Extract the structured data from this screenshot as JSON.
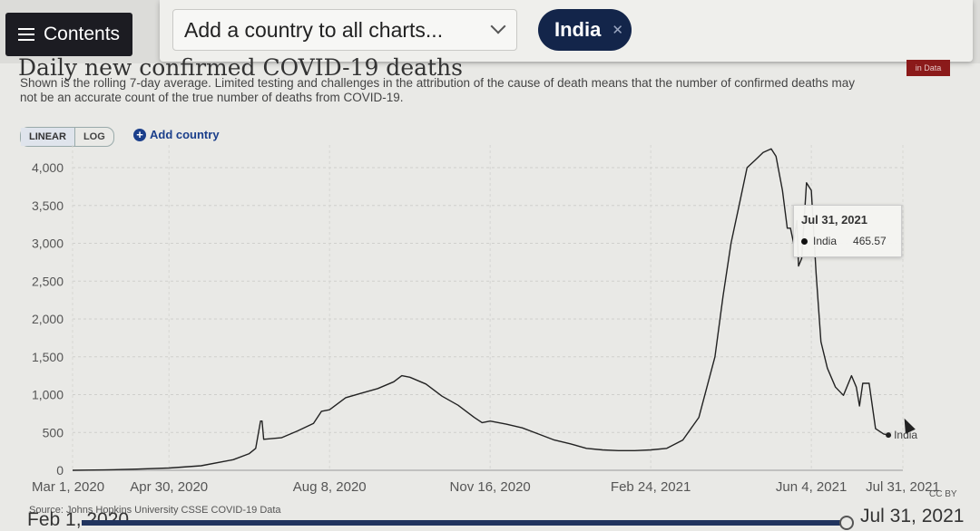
{
  "toolbar": {
    "contents_label": "Contents",
    "country_select_placeholder": "Add a country to all charts...",
    "selected_country": "India"
  },
  "header": {
    "title": "Daily new confirmed COVID-19 deaths",
    "subtitle": "Shown is the rolling 7-day average. Limited testing and challenges in the attribution of the cause of death means that the number of confirmed deaths may not be an accurate count of the true number of deaths from COVID-19.",
    "badge": "in Data"
  },
  "controls": {
    "linear_label": "LINEAR",
    "log_label": "LOG",
    "add_country_label": "Add country"
  },
  "tooltip": {
    "date": "Jul 31, 2021",
    "series": "India",
    "value": "465.57"
  },
  "footer": {
    "source": "Source: Johns Hopkins University CSSE COVID-19 Data",
    "license": "CC BY",
    "timeline_end": "Jul 31, 2021",
    "timeline_start": "Feb 1, 2020"
  },
  "chart_data": {
    "type": "line",
    "title": "Daily new confirmed COVID-19 deaths",
    "y_ticks": [
      "0",
      "500",
      "1,000",
      "1,500",
      "2,000",
      "2,500",
      "3,000",
      "3,500",
      "4,000"
    ],
    "ylim": [
      0,
      4300
    ],
    "x_ticks": [
      "Mar 1, 2020",
      "Apr 30, 2020",
      "Aug 8, 2020",
      "Nov 16, 2020",
      "Feb 24, 2021",
      "Jun 4, 2021",
      "Jul 31, 2021"
    ],
    "x_tick_days": [
      0,
      60,
      160,
      260,
      360,
      460,
      517
    ],
    "x_range_days": [
      0,
      517
    ],
    "grid": true,
    "series": [
      {
        "name": "India",
        "color": "#222222",
        "points": [
          [
            0,
            0
          ],
          [
            20,
            5
          ],
          [
            40,
            15
          ],
          [
            60,
            30
          ],
          [
            80,
            60
          ],
          [
            100,
            140
          ],
          [
            110,
            220
          ],
          [
            114,
            290
          ],
          [
            117,
            650
          ],
          [
            118,
            650
          ],
          [
            119,
            410
          ],
          [
            130,
            430
          ],
          [
            140,
            520
          ],
          [
            150,
            620
          ],
          [
            155,
            780
          ],
          [
            160,
            800
          ],
          [
            170,
            960
          ],
          [
            180,
            1020
          ],
          [
            190,
            1080
          ],
          [
            200,
            1170
          ],
          [
            205,
            1250
          ],
          [
            210,
            1230
          ],
          [
            220,
            1140
          ],
          [
            230,
            980
          ],
          [
            240,
            860
          ],
          [
            250,
            700
          ],
          [
            255,
            630
          ],
          [
            260,
            650
          ],
          [
            270,
            610
          ],
          [
            280,
            560
          ],
          [
            290,
            480
          ],
          [
            300,
            400
          ],
          [
            310,
            350
          ],
          [
            320,
            290
          ],
          [
            330,
            270
          ],
          [
            340,
            260
          ],
          [
            350,
            260
          ],
          [
            360,
            270
          ],
          [
            370,
            290
          ],
          [
            380,
            400
          ],
          [
            390,
            700
          ],
          [
            400,
            1500
          ],
          [
            405,
            2300
          ],
          [
            410,
            3000
          ],
          [
            415,
            3500
          ],
          [
            420,
            4000
          ],
          [
            425,
            4100
          ],
          [
            430,
            4200
          ],
          [
            435,
            4250
          ],
          [
            438,
            4150
          ],
          [
            442,
            3700
          ],
          [
            445,
            3200
          ],
          [
            447,
            3200
          ],
          [
            449,
            3000
          ],
          [
            451,
            3300
          ],
          [
            452,
            2700
          ],
          [
            454,
            2800
          ],
          [
            457,
            3800
          ],
          [
            460,
            3700
          ],
          [
            463,
            2600
          ],
          [
            466,
            1700
          ],
          [
            470,
            1350
          ],
          [
            475,
            1100
          ],
          [
            480,
            990
          ],
          [
            485,
            1250
          ],
          [
            488,
            1100
          ],
          [
            490,
            850
          ],
          [
            492,
            1150
          ],
          [
            496,
            1150
          ],
          [
            500,
            550
          ],
          [
            505,
            480
          ],
          [
            508,
            466
          ]
        ]
      }
    ],
    "series_label": "India"
  }
}
